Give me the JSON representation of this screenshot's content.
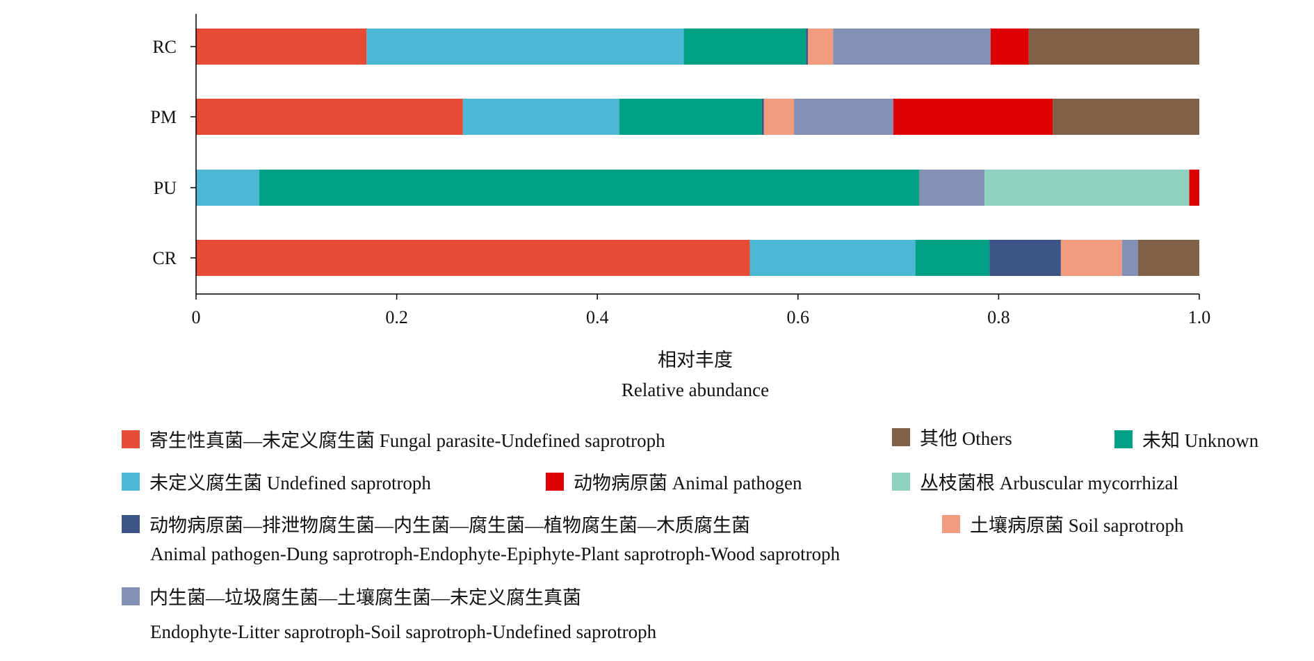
{
  "chart_data": {
    "type": "bar",
    "orientation": "horizontal",
    "stacked": true,
    "categories": [
      "RC",
      "PM",
      "PU",
      "CR"
    ],
    "xlabel_cn": "相对丰度",
    "xlabel": "Relative abundance",
    "xlim": [
      0,
      1.0
    ],
    "xticks": [
      "0",
      "0.2",
      "0.4",
      "0.6",
      "0.8",
      "1.0"
    ],
    "grid": false,
    "legend_position": "bottom",
    "series": [
      {
        "name": "寄生性真菌—未定义腐生菌 Fungal parasite-Undefined saprotroph",
        "color": "#e64b35",
        "values": [
          0.17,
          0.266,
          0.0,
          0.552
        ]
      },
      {
        "name": "未定义腐生菌 Undefined saprotroph",
        "color": "#4db8d6",
        "values": [
          0.316,
          0.156,
          0.063,
          0.165
        ]
      },
      {
        "name": "未知 Unknown",
        "color": "#00a087",
        "values": [
          0.122,
          0.142,
          0.658,
          0.074
        ]
      },
      {
        "name": "动物病原菌—排泄物腐生菌—内生菌—腐生菌—植物腐生菌—木质腐生菌 Animal pathogen-Dung saprotroph-Endophyte-Epiphyte-Plant saprotroph-Wood saprotroph",
        "color": "#3c5488",
        "values": [
          0.002,
          0.002,
          0.0,
          0.071
        ]
      },
      {
        "name": "土壤病原菌 Soil saprotroph",
        "color": "#f39b7f",
        "values": [
          0.025,
          0.03,
          0.0,
          0.061
        ]
      },
      {
        "name": "内生菌—垃圾腐生菌—土壤腐生菌—未定义腐生真菌 Endophyte-Litter saprotroph-Soil saprotroph-Undefined saprotroph",
        "color": "#8491b4",
        "values": [
          0.157,
          0.099,
          0.065,
          0.016
        ]
      },
      {
        "name": "丛枝菌根 Arbuscular mycorrhizal",
        "color": "#91d1c2",
        "values": [
          0.0,
          0.0,
          0.204,
          0.0
        ]
      },
      {
        "name": "动物病原菌 Animal pathogen",
        "color": "#dc0000",
        "values": [
          0.038,
          0.159,
          0.01,
          0.0
        ]
      },
      {
        "name": "其他 Others",
        "color": "#7e6148",
        "values": [
          0.17,
          0.146,
          0.0,
          0.061
        ]
      }
    ]
  },
  "legend": {
    "items": [
      {
        "key": "parasite",
        "label": "寄生性真菌—未定义腐生菌 Fungal parasite-Undefined saprotroph",
        "color": "#e64b35"
      },
      {
        "key": "others",
        "label": "其他 Others",
        "color": "#7e6148"
      },
      {
        "key": "unknown",
        "label": "未知 Unknown",
        "color": "#00a087"
      },
      {
        "key": "undefined",
        "label": "未定义腐生菌 Undefined saprotroph",
        "color": "#4db8d6"
      },
      {
        "key": "animal",
        "label": "动物病原菌 Animal pathogen",
        "color": "#dc0000"
      },
      {
        "key": "amf",
        "label": "丛枝菌根 Arbuscular mycorrhizal",
        "color": "#91d1c2"
      },
      {
        "key": "dung",
        "label": "动物病原菌—排泄物腐生菌—内生菌—腐生菌—植物腐生菌—木质腐生菌",
        "sub": "Animal pathogen-Dung saprotroph-Endophyte-Epiphyte-Plant saprotroph-Wood saprotroph",
        "color": "#3c5488"
      },
      {
        "key": "soil",
        "label": "土壤病原菌 Soil saprotroph",
        "color": "#f39b7f"
      },
      {
        "key": "endophyte",
        "label": "内生菌—垃圾腐生菌—土壤腐生菌—未定义腐生真菌",
        "sub": "Endophyte-Litter saprotroph-Soil saprotroph-Undefined saprotroph",
        "color": "#8491b4"
      }
    ]
  }
}
